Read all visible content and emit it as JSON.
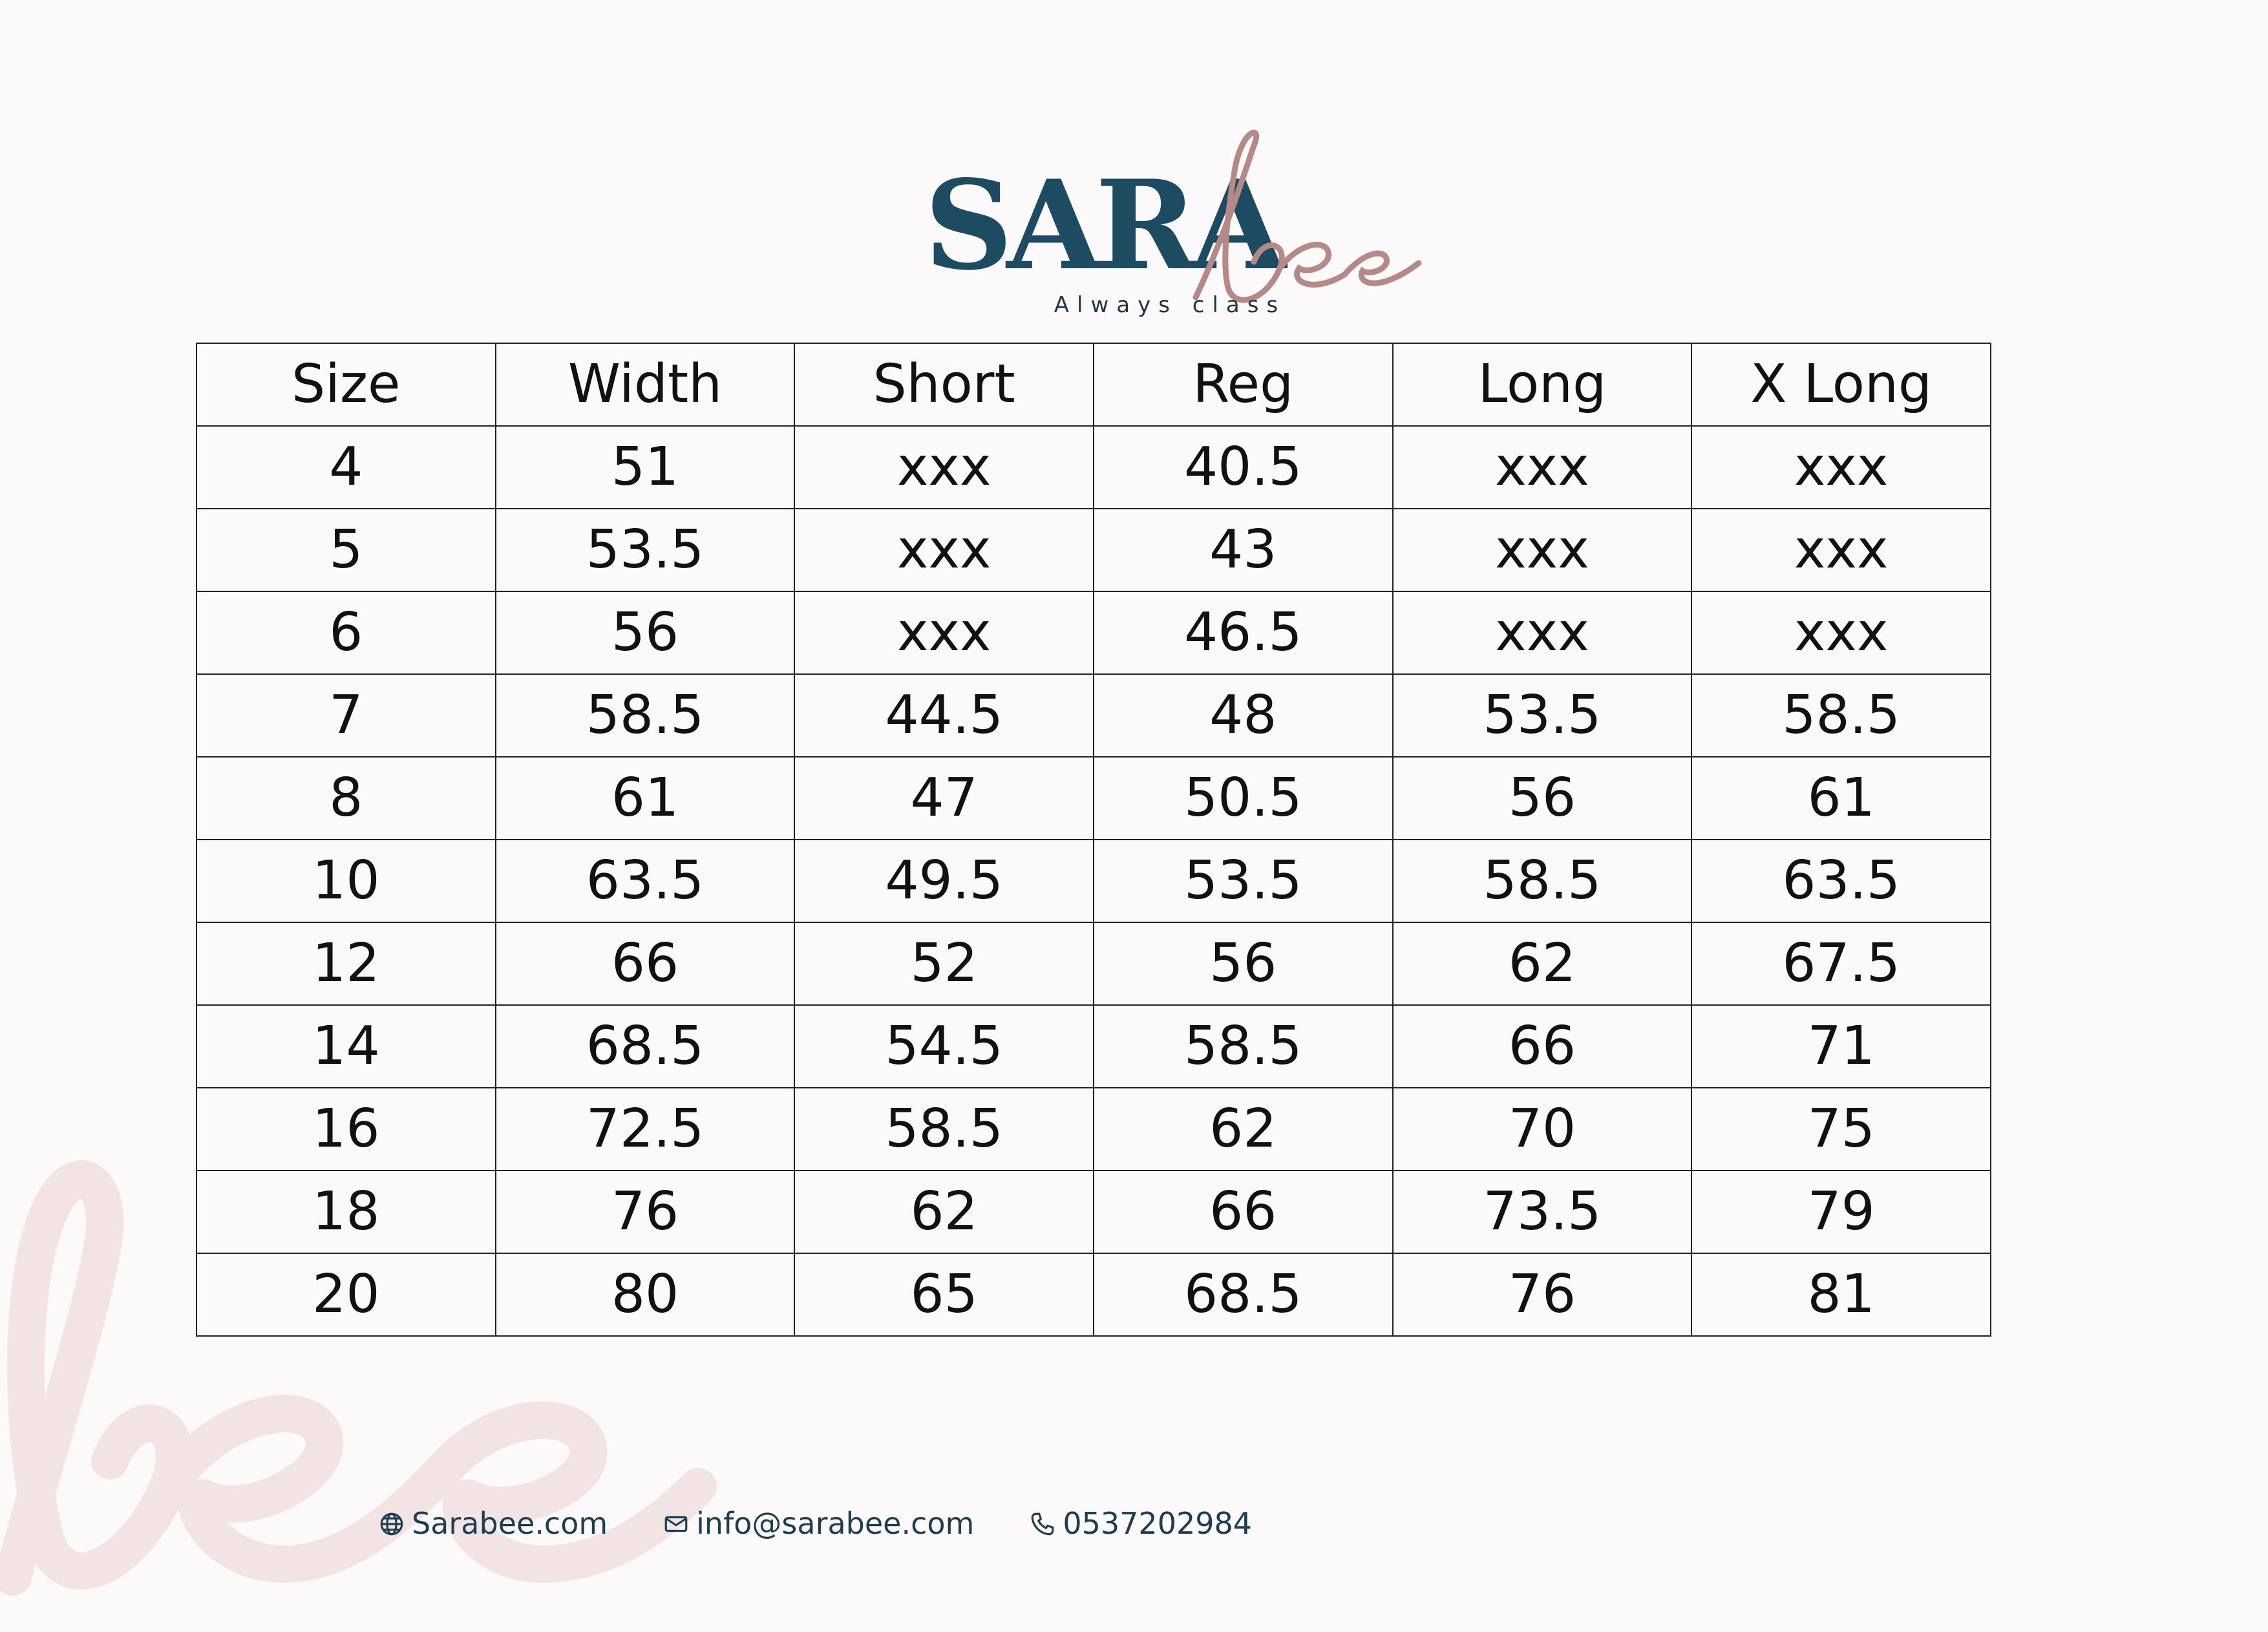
{
  "brand": {
    "name_main": "SARA",
    "name_script": "bee",
    "tagline": "Always class",
    "colors": {
      "navy": "#1d4b62",
      "rose": "#b58a86",
      "watermark": "#f3e4e4"
    }
  },
  "table": {
    "headers": [
      "Size",
      "Width",
      "Short",
      "Reg",
      "Long",
      "X Long"
    ],
    "rows": [
      [
        "4",
        "51",
        "xxx",
        "40.5",
        "xxx",
        "xxx"
      ],
      [
        "5",
        "53.5",
        "xxx",
        "43",
        "xxx",
        "xxx"
      ],
      [
        "6",
        "56",
        "xxx",
        "46.5",
        "xxx",
        "xxx"
      ],
      [
        "7",
        "58.5",
        "44.5",
        "48",
        "53.5",
        "58.5"
      ],
      [
        "8",
        "61",
        "47",
        "50.5",
        "56",
        "61"
      ],
      [
        "10",
        "63.5",
        "49.5",
        "53.5",
        "58.5",
        "63.5"
      ],
      [
        "12",
        "66",
        "52",
        "56",
        "62",
        "67.5"
      ],
      [
        "14",
        "68.5",
        "54.5",
        "58.5",
        "66",
        "71"
      ],
      [
        "16",
        "72.5",
        "58.5",
        "62",
        "70",
        "75"
      ],
      [
        "18",
        "76",
        "62",
        "66",
        "73.5",
        "79"
      ],
      [
        "20",
        "80",
        "65",
        "68.5",
        "76",
        "81"
      ]
    ]
  },
  "footer": {
    "website": {
      "icon": "globe-icon",
      "text": "Sarabee.com"
    },
    "email": {
      "icon": "mail-icon",
      "text": "info@sarabee.com"
    },
    "phone": {
      "icon": "phone-icon",
      "text": "0537202984"
    }
  }
}
